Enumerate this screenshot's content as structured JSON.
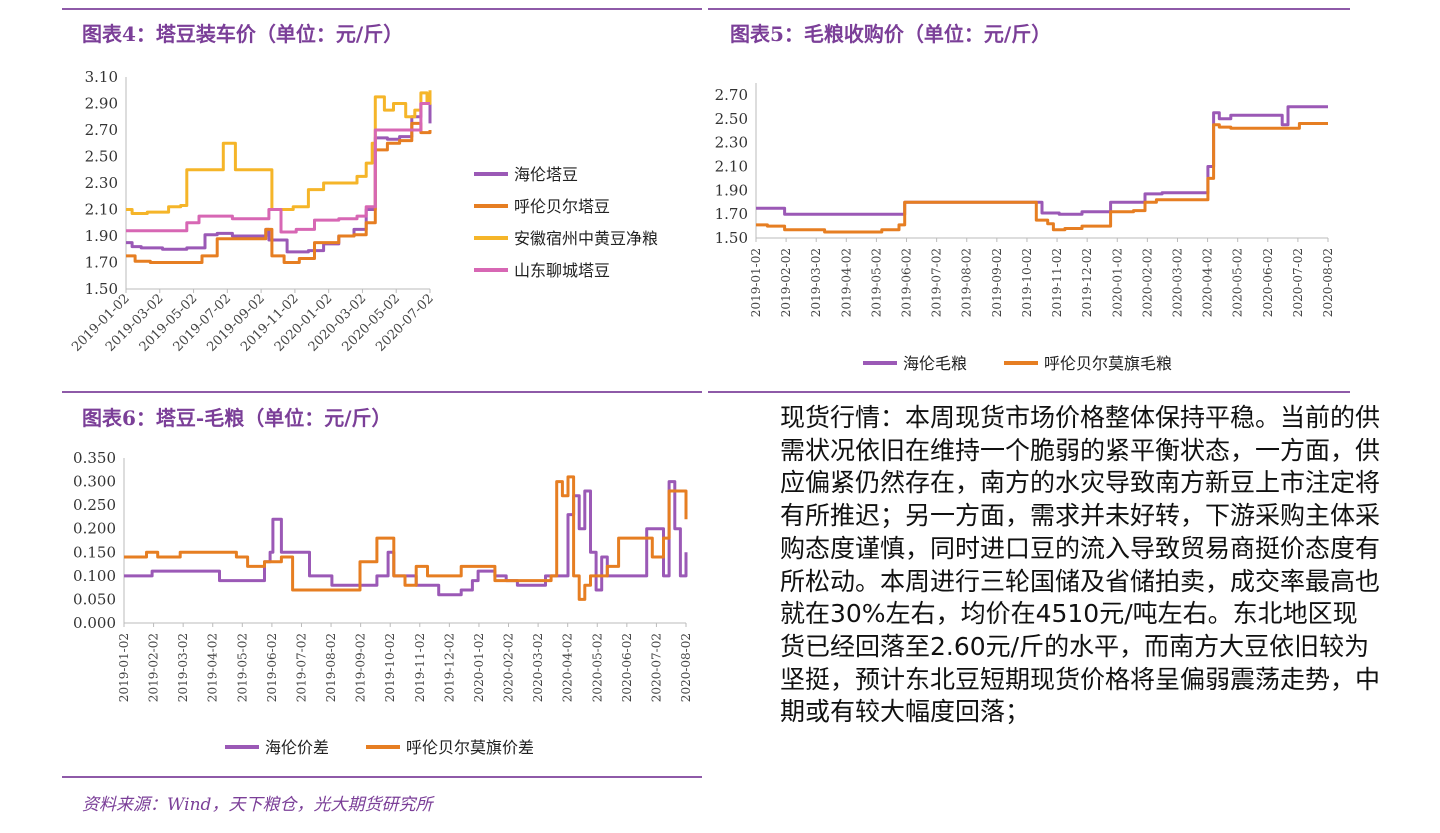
{
  "colors": {
    "accent": "#7b3f98",
    "series_purple": "#9b59b6",
    "series_orange": "#e67e22",
    "series_yellow": "#f5b529",
    "series_pink": "#d767b4"
  },
  "chart_data": [
    {
      "id": "chart4",
      "type": "line",
      "title": "图表4：塔豆装车价（单位：元/斤）",
      "xlabel": "",
      "ylabel": "",
      "ylim": [
        1.5,
        3.1
      ],
      "yticks": [
        "3.10",
        "2.90",
        "2.70",
        "2.50",
        "2.30",
        "2.10",
        "1.90",
        "1.70",
        "1.50"
      ],
      "xticks": [
        "2019-01-02",
        "2019-03-02",
        "2019-05-02",
        "2019-07-02",
        "2019-09-02",
        "2019-11-02",
        "2020-01-02",
        "2020-03-02",
        "2020-05-02",
        "2020-07-02"
      ],
      "legend": "right",
      "series": [
        {
          "name": "海伦塔豆",
          "color": "#9b59b6",
          "x": [
            0,
            0.02,
            0.05,
            0.12,
            0.2,
            0.26,
            0.3,
            0.35,
            0.41,
            0.46,
            0.47,
            0.53,
            0.6,
            0.65,
            0.7,
            0.75,
            0.79,
            0.82,
            0.86,
            0.9,
            0.94,
            0.97,
            1.0
          ],
          "values": [
            1.85,
            1.82,
            1.81,
            1.8,
            1.81,
            1.91,
            1.92,
            1.9,
            1.9,
            1.95,
            1.87,
            1.78,
            1.79,
            1.84,
            1.9,
            1.95,
            2.1,
            2.64,
            2.63,
            2.65,
            2.8,
            2.9,
            2.75
          ]
        },
        {
          "name": "呼伦贝尔塔豆",
          "color": "#e67e22",
          "x": [
            0,
            0.03,
            0.08,
            0.2,
            0.25,
            0.3,
            0.42,
            0.46,
            0.48,
            0.52,
            0.57,
            0.62,
            0.7,
            0.75,
            0.79,
            0.82,
            0.86,
            0.9,
            0.94,
            0.97,
            1.0
          ],
          "values": [
            1.75,
            1.71,
            1.7,
            1.7,
            1.75,
            1.88,
            1.88,
            1.95,
            1.75,
            1.7,
            1.73,
            1.85,
            1.9,
            1.91,
            2.0,
            2.55,
            2.6,
            2.62,
            2.75,
            2.68,
            2.7
          ]
        },
        {
          "name": "安徽宿州中黄豆净粮",
          "color": "#f5b529",
          "x": [
            0,
            0.02,
            0.07,
            0.14,
            0.18,
            0.2,
            0.3,
            0.32,
            0.36,
            0.46,
            0.48,
            0.55,
            0.6,
            0.65,
            0.71,
            0.76,
            0.79,
            0.81,
            0.82,
            0.85,
            0.88,
            0.92,
            0.95,
            0.97,
            0.99,
            1.0
          ],
          "values": [
            2.1,
            2.07,
            2.08,
            2.12,
            2.13,
            2.4,
            2.4,
            2.6,
            2.4,
            2.4,
            2.1,
            2.12,
            2.25,
            2.3,
            2.3,
            2.35,
            2.45,
            2.6,
            2.95,
            2.85,
            2.9,
            2.8,
            2.85,
            2.98,
            2.9,
            3.0
          ]
        },
        {
          "name": "山东聊城塔豆",
          "color": "#d767b4",
          "x": [
            0,
            0.08,
            0.17,
            0.2,
            0.24,
            0.3,
            0.35,
            0.43,
            0.47,
            0.51,
            0.56,
            0.62,
            0.7,
            0.76,
            0.79,
            0.82,
            0.86,
            0.9,
            0.94,
            0.97,
            1.0
          ],
          "values": [
            1.94,
            1.94,
            1.94,
            2.0,
            2.05,
            2.05,
            2.03,
            2.03,
            2.1,
            1.93,
            1.95,
            2.02,
            2.03,
            2.05,
            2.12,
            2.7,
            2.7,
            2.7,
            2.7,
            2.9,
            2.9
          ]
        }
      ]
    },
    {
      "id": "chart5",
      "type": "line",
      "title": "图表5：毛粮收购价（单位：元/斤）",
      "xlabel": "",
      "ylabel": "",
      "ylim": [
        1.5,
        2.8
      ],
      "yticks": [
        "2.70",
        "2.50",
        "2.30",
        "2.10",
        "1.90",
        "1.70",
        "1.50"
      ],
      "xticks": [
        "2019-01-02",
        "2019-02-02",
        "2019-03-02",
        "2019-04-02",
        "2019-05-02",
        "2019-06-02",
        "2019-07-02",
        "2019-08-02",
        "2019-09-02",
        "2019-10-02",
        "2019-11-02",
        "2019-12-02",
        "2020-01-02",
        "2020-02-02",
        "2020-03-02",
        "2020-04-02",
        "2020-05-02",
        "2020-06-02",
        "2020-07-02",
        "2020-08-02"
      ],
      "legend": "bottom",
      "series": [
        {
          "name": "海伦毛粮",
          "color": "#9b59b6",
          "x": [
            0,
            0.02,
            0.05,
            0.2,
            0.25,
            0.26,
            0.35,
            0.48,
            0.5,
            0.53,
            0.57,
            0.62,
            0.64,
            0.68,
            0.71,
            0.78,
            0.79,
            0.8,
            0.81,
            0.83,
            0.85,
            0.87,
            0.9,
            0.92,
            0.93,
            0.95,
            1.0
          ],
          "values": [
            1.75,
            1.75,
            1.7,
            1.7,
            1.7,
            1.8,
            1.8,
            1.8,
            1.71,
            1.7,
            1.72,
            1.8,
            1.8,
            1.87,
            1.88,
            1.88,
            2.1,
            2.55,
            2.5,
            2.53,
            2.53,
            2.53,
            2.53,
            2.45,
            2.6,
            2.6,
            2.6
          ]
        },
        {
          "name": "呼伦贝尔莫旗毛粮",
          "color": "#e67e22",
          "x": [
            0,
            0.02,
            0.05,
            0.12,
            0.19,
            0.22,
            0.25,
            0.26,
            0.35,
            0.48,
            0.49,
            0.51,
            0.52,
            0.54,
            0.57,
            0.62,
            0.66,
            0.68,
            0.7,
            0.78,
            0.79,
            0.8,
            0.81,
            0.83,
            0.87,
            0.92,
            0.95,
            1.0
          ],
          "values": [
            1.61,
            1.6,
            1.57,
            1.55,
            1.55,
            1.57,
            1.61,
            1.8,
            1.8,
            1.8,
            1.65,
            1.62,
            1.57,
            1.58,
            1.6,
            1.72,
            1.73,
            1.8,
            1.82,
            1.82,
            2.0,
            2.45,
            2.43,
            2.42,
            2.42,
            2.42,
            2.46,
            2.46
          ]
        }
      ]
    },
    {
      "id": "chart6",
      "type": "line",
      "title": "图表6：塔豆-毛粮（单位：元/斤）",
      "xlabel": "",
      "ylabel": "",
      "ylim": [
        0,
        0.35
      ],
      "yticks": [
        "0.350",
        "0.300",
        "0.250",
        "0.200",
        "0.150",
        "0.100",
        "0.050",
        "0.000"
      ],
      "xticks": [
        "2019-01-02",
        "2019-02-02",
        "2019-03-02",
        "2019-04-02",
        "2019-05-02",
        "2019-06-02",
        "2019-07-02",
        "2019-08-02",
        "2019-09-02",
        "2019-10-02",
        "2019-11-02",
        "2019-12-02",
        "2020-01-02",
        "2020-02-02",
        "2020-03-02",
        "2020-04-02",
        "2020-05-02",
        "2020-06-02",
        "2020-07-02",
        "2020-08-02"
      ],
      "legend": "bottom",
      "series": [
        {
          "name": "海伦价差",
          "color": "#9b59b6",
          "x": [
            0,
            0.03,
            0.05,
            0.1,
            0.15,
            0.17,
            0.24,
            0.25,
            0.26,
            0.265,
            0.27,
            0.28,
            0.32,
            0.33,
            0.37,
            0.42,
            0.45,
            0.47,
            0.48,
            0.52,
            0.55,
            0.56,
            0.58,
            0.6,
            0.62,
            0.63,
            0.66,
            0.68,
            0.7,
            0.72,
            0.75,
            0.77,
            0.78,
            0.79,
            0.8,
            0.81,
            0.82,
            0.83,
            0.84,
            0.85,
            0.86,
            0.88,
            0.9,
            0.92,
            0.93,
            0.95,
            0.96,
            0.97,
            0.98,
            0.99,
            1.0
          ],
          "values": [
            0.1,
            0.1,
            0.11,
            0.11,
            0.11,
            0.09,
            0.09,
            0.13,
            0.15,
            0.22,
            0.22,
            0.15,
            0.15,
            0.1,
            0.08,
            0.08,
            0.1,
            0.15,
            0.1,
            0.08,
            0.08,
            0.06,
            0.06,
            0.07,
            0.09,
            0.11,
            0.1,
            0.09,
            0.08,
            0.08,
            0.1,
            0.1,
            0.1,
            0.23,
            0.27,
            0.2,
            0.28,
            0.15,
            0.07,
            0.14,
            0.1,
            0.1,
            0.1,
            0.1,
            0.2,
            0.2,
            0.1,
            0.3,
            0.2,
            0.1,
            0.15
          ]
        },
        {
          "name": "呼伦贝尔莫旗价差",
          "color": "#e67e22",
          "x": [
            0,
            0.02,
            0.04,
            0.06,
            0.1,
            0.18,
            0.2,
            0.22,
            0.24,
            0.25,
            0.28,
            0.3,
            0.32,
            0.36,
            0.4,
            0.42,
            0.45,
            0.46,
            0.48,
            0.5,
            0.52,
            0.54,
            0.56,
            0.58,
            0.6,
            0.62,
            0.66,
            0.7,
            0.74,
            0.76,
            0.77,
            0.78,
            0.79,
            0.8,
            0.81,
            0.82,
            0.83,
            0.84,
            0.86,
            0.88,
            0.9,
            0.92,
            0.94,
            0.96,
            0.97,
            0.98,
            1.0
          ],
          "values": [
            0.14,
            0.14,
            0.15,
            0.14,
            0.15,
            0.15,
            0.14,
            0.12,
            0.12,
            0.13,
            0.14,
            0.07,
            0.07,
            0.07,
            0.07,
            0.13,
            0.18,
            0.18,
            0.1,
            0.08,
            0.12,
            0.1,
            0.1,
            0.1,
            0.12,
            0.12,
            0.09,
            0.09,
            0.09,
            0.1,
            0.3,
            0.27,
            0.31,
            0.1,
            0.05,
            0.08,
            0.1,
            0.1,
            0.12,
            0.18,
            0.18,
            0.18,
            0.14,
            0.18,
            0.28,
            0.28,
            0.22
          ]
        }
      ]
    }
  ],
  "commentary": "现货行情：本周现货市场价格整体保持平稳。当前的供需状况依旧在维持一个脆弱的紧平衡状态，一方面，供应偏紧仍然存在，南方的水灾导致南方新豆上市注定将有所推迟；另一方面，需求并未好转，下游采购主体采购态度谨慎，同时进口豆的流入导致贸易商挺价态度有所松动。本周进行三轮国储及省储拍卖，成交率最高也就在30%左右，均价在4510元/吨左右。东北地区现货已经回落至2.60元/斤的水平，而南方大豆依旧较为坚挺，预计东北豆短期现货价格将呈偏弱震荡走势，中期或有较大幅度回落；",
  "source": "资料来源：Wind，天下粮仓，光大期货研究所"
}
